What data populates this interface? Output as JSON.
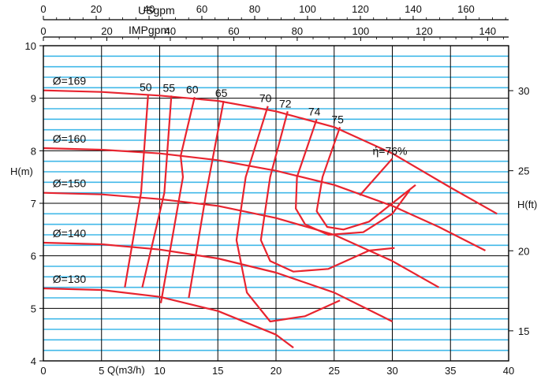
{
  "chart_data": {
    "type": "line",
    "title": "",
    "x_axis": {
      "label": "Q(m3/h)",
      "range": [
        0,
        40
      ],
      "ticks": [
        0,
        5,
        10,
        15,
        20,
        25,
        30,
        35,
        40
      ],
      "tick_labels": [
        "0",
        "5",
        "10",
        "15",
        "20",
        "25",
        "30",
        "35",
        "40"
      ]
    },
    "usgpm_axis": {
      "label": "USgpm",
      "ticks": [
        0,
        20,
        40,
        60,
        80,
        100,
        120,
        140,
        160
      ],
      "tick_labels": [
        "0",
        "20",
        "40",
        "60",
        "80",
        "100",
        "120",
        "140",
        "160"
      ]
    },
    "impgpm_axis": {
      "label": "IMPgpm",
      "ticks": [
        0,
        20,
        40,
        60,
        80,
        100,
        120,
        140
      ],
      "tick_labels": [
        "0",
        "20",
        "40",
        "60",
        "80",
        "100",
        "120",
        "140"
      ]
    },
    "y_axis": {
      "label": "H(m)",
      "range": [
        4,
        10
      ],
      "ticks": [
        4,
        5,
        6,
        7,
        8,
        9,
        10
      ],
      "tick_labels": [
        "4",
        "5",
        "6",
        "7",
        "8",
        "9",
        "10"
      ]
    },
    "y2_axis": {
      "label": "H(ft)",
      "ticks": [
        15,
        20,
        25,
        30
      ],
      "tick_labels": [
        "15",
        "20",
        "25",
        "30"
      ]
    },
    "grid": true,
    "colors": {
      "curve": "#e8242f",
      "minor_grid": "#41b8e8",
      "major_grid": "#000000"
    },
    "series": [
      {
        "name": "Ø=169",
        "label": "Ø=169",
        "x": [
          0,
          5,
          10,
          15,
          20,
          25,
          30,
          35,
          39
        ],
        "y": [
          9.15,
          9.12,
          9.05,
          8.95,
          8.75,
          8.45,
          7.95,
          7.3,
          6.8
        ]
      },
      {
        "name": "Ø=160",
        "label": "Ø=160",
        "x": [
          0,
          5,
          10,
          15,
          20,
          25,
          30,
          34,
          38
        ],
        "y": [
          8.05,
          8.02,
          7.95,
          7.82,
          7.62,
          7.35,
          6.95,
          6.55,
          6.1
        ]
      },
      {
        "name": "Ø=150",
        "label": "Ø=150",
        "x": [
          0,
          5,
          10,
          15,
          20,
          25,
          30,
          34
        ],
        "y": [
          7.2,
          7.17,
          7.08,
          6.95,
          6.72,
          6.4,
          5.9,
          5.4
        ]
      },
      {
        "name": "Ø=140",
        "label": "Ø=140",
        "x": [
          0,
          5,
          10,
          15,
          20,
          25,
          30
        ],
        "y": [
          6.25,
          6.22,
          6.12,
          5.95,
          5.68,
          5.3,
          4.75
        ]
      },
      {
        "name": "Ø=130",
        "label": "Ø=130",
        "x": [
          0,
          5,
          10,
          15,
          20,
          21.5
        ],
        "y": [
          5.38,
          5.35,
          5.22,
          4.95,
          4.5,
          4.25
        ]
      }
    ],
    "efficiency_curves": [
      {
        "label": "50",
        "x": [
          9.0,
          8.4,
          7.0
        ],
        "y": [
          9.06,
          7.2,
          5.4
        ]
      },
      {
        "label": "55",
        "x": [
          11.0,
          10.4,
          8.5
        ],
        "y": [
          9.05,
          7.2,
          5.4
        ]
      },
      {
        "label": "60",
        "x": [
          13.0,
          11.8,
          12.0,
          10.1
        ],
        "y": [
          9.02,
          7.9,
          7.5,
          5.1
        ]
      },
      {
        "label": "65",
        "x": [
          15.5,
          14.0,
          12.5
        ],
        "y": [
          8.95,
          7.2,
          5.2
        ]
      },
      {
        "label": "70",
        "x": [
          19.3,
          17.4,
          16.6,
          17.5,
          19.5,
          22.5,
          25.5
        ],
        "y": [
          8.85,
          7.5,
          6.3,
          5.3,
          4.75,
          4.85,
          5.15
        ]
      },
      {
        "label": "72",
        "x": [
          21.0,
          19.5,
          18.7,
          19.5,
          21.5,
          24.5,
          28.0,
          30.2
        ],
        "y": [
          8.75,
          7.5,
          6.3,
          5.9,
          5.7,
          5.75,
          6.1,
          6.15
        ]
      },
      {
        "label": "74",
        "x": [
          23.5,
          21.8,
          21.7,
          22.5,
          24.5,
          27.5,
          30.0,
          31.5
        ],
        "y": [
          8.6,
          7.5,
          6.9,
          6.6,
          6.4,
          6.45,
          6.8,
          7.25
        ]
      },
      {
        "label": "75",
        "x": [
          25.5,
          24.0,
          23.5,
          24.4,
          25.8,
          28.0,
          32.0
        ],
        "y": [
          8.45,
          7.5,
          6.85,
          6.55,
          6.5,
          6.65,
          7.35
        ]
      },
      {
        "label": "ή=76%",
        "x": [
          30.0,
          27.2
        ],
        "y": [
          7.85,
          7.15
        ]
      }
    ]
  }
}
